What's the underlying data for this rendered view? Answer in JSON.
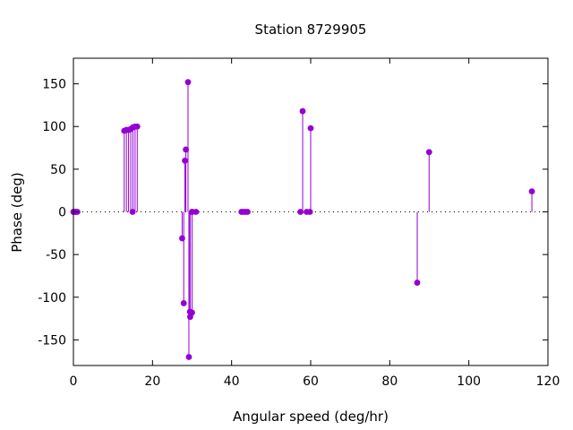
{
  "chart_data": {
    "type": "stem",
    "title": "Station 8729905",
    "xlabel": "Angular speed (deg/hr)",
    "ylabel": "Phase (deg)",
    "xlim": [
      0,
      120
    ],
    "ylim": [
      -180,
      180
    ],
    "xticks": [
      0,
      20,
      40,
      60,
      80,
      100,
      120
    ],
    "yticks": [
      -150,
      -100,
      -50,
      0,
      50,
      100,
      150
    ],
    "grid": false,
    "zero_line": "dotted",
    "color": "#9400d3",
    "points": [
      {
        "x": 0.0,
        "y": 0
      },
      {
        "x": 0.04,
        "y": 0
      },
      {
        "x": 0.08,
        "y": 0
      },
      {
        "x": 0.5,
        "y": 0
      },
      {
        "x": 0.6,
        "y": 0
      },
      {
        "x": 1.0,
        "y": 0
      },
      {
        "x": 12.85,
        "y": 95
      },
      {
        "x": 13.4,
        "y": 96
      },
      {
        "x": 13.94,
        "y": 96
      },
      {
        "x": 14.5,
        "y": 97
      },
      {
        "x": 14.96,
        "y": 0
      },
      {
        "x": 15.04,
        "y": 99
      },
      {
        "x": 15.59,
        "y": 100
      },
      {
        "x": 16.14,
        "y": 100
      },
      {
        "x": 27.5,
        "y": -31
      },
      {
        "x": 27.9,
        "y": -107
      },
      {
        "x": 28.2,
        "y": 60
      },
      {
        "x": 28.44,
        "y": 73
      },
      {
        "x": 28.98,
        "y": 152
      },
      {
        "x": 29.2,
        "y": -170
      },
      {
        "x": 29.46,
        "y": -117
      },
      {
        "x": 29.53,
        "y": -123
      },
      {
        "x": 29.96,
        "y": 0
      },
      {
        "x": 30.0,
        "y": -118
      },
      {
        "x": 30.08,
        "y": 0
      },
      {
        "x": 31.0,
        "y": 0
      },
      {
        "x": 42.5,
        "y": 0
      },
      {
        "x": 42.93,
        "y": 0
      },
      {
        "x": 43.48,
        "y": 0
      },
      {
        "x": 44.03,
        "y": 0
      },
      {
        "x": 57.42,
        "y": 0
      },
      {
        "x": 57.97,
        "y": 118
      },
      {
        "x": 58.98,
        "y": 0
      },
      {
        "x": 59.8,
        "y": 0
      },
      {
        "x": 60.0,
        "y": 98
      },
      {
        "x": 86.95,
        "y": -83
      },
      {
        "x": 89.95,
        "y": 70
      },
      {
        "x": 115.94,
        "y": 24
      }
    ]
  }
}
